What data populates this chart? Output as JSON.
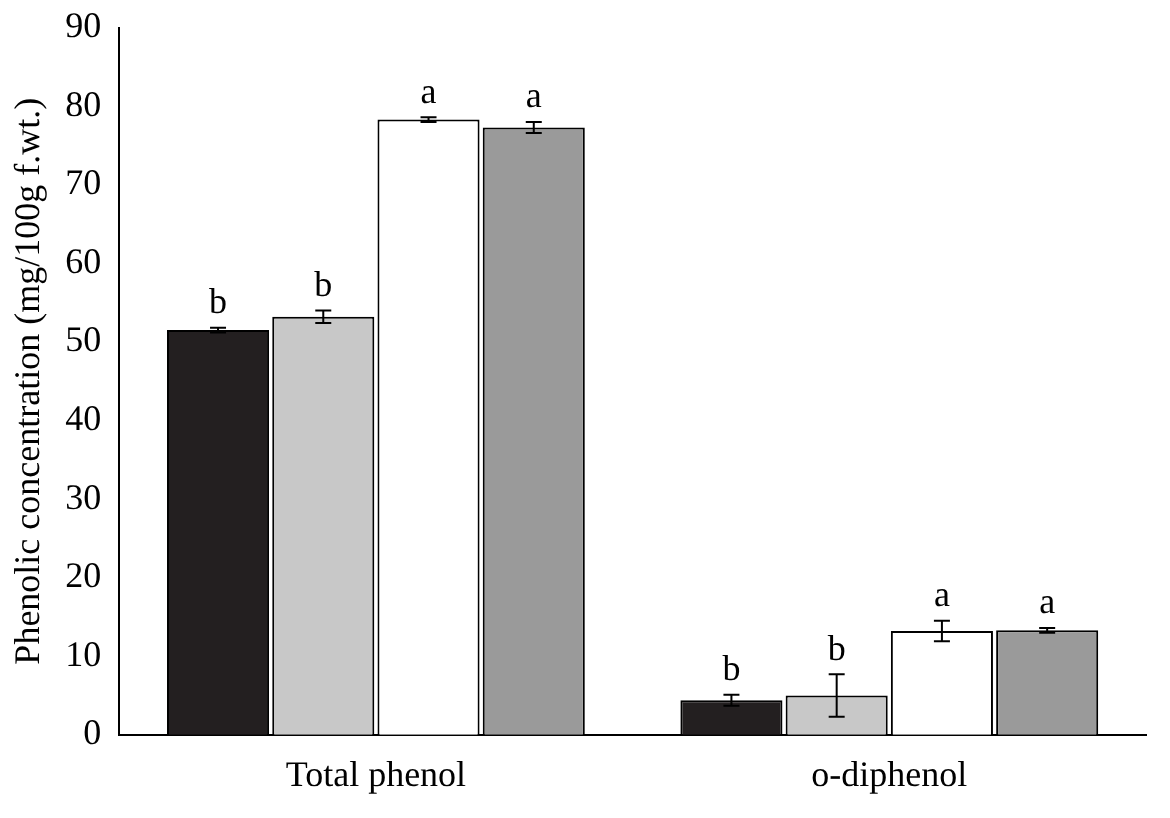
{
  "chart_data": {
    "type": "bar",
    "ylabel": "Phenolic concentration (mg/100g f.wt.)",
    "categories": [
      "Total phenol",
      "o-diphenol"
    ],
    "series": [
      {
        "color": "#231f20",
        "values": [
          51.5,
          4.4
        ],
        "errors": [
          0.3,
          0.7
        ],
        "value_labels": [
          "b",
          "b"
        ]
      },
      {
        "color": "#c8c8c8",
        "values": [
          53.2,
          5.0
        ],
        "errors": [
          0.8,
          2.7
        ],
        "value_labels": [
          "b",
          "b"
        ]
      },
      {
        "color": "#ffffff",
        "values": [
          78.3,
          13.2
        ],
        "errors": [
          0.3,
          1.3
        ],
        "value_labels": [
          "a",
          "a"
        ]
      },
      {
        "color": "#9a9a9a",
        "values": [
          77.3,
          13.3
        ],
        "errors": [
          0.7,
          0.3
        ],
        "value_labels": [
          "a",
          "a"
        ]
      }
    ],
    "ylim": [
      0,
      90
    ],
    "yticks": [
      0,
      10,
      20,
      30,
      40,
      50,
      60,
      70,
      80,
      90
    ],
    "grid": false,
    "legend": false
  }
}
